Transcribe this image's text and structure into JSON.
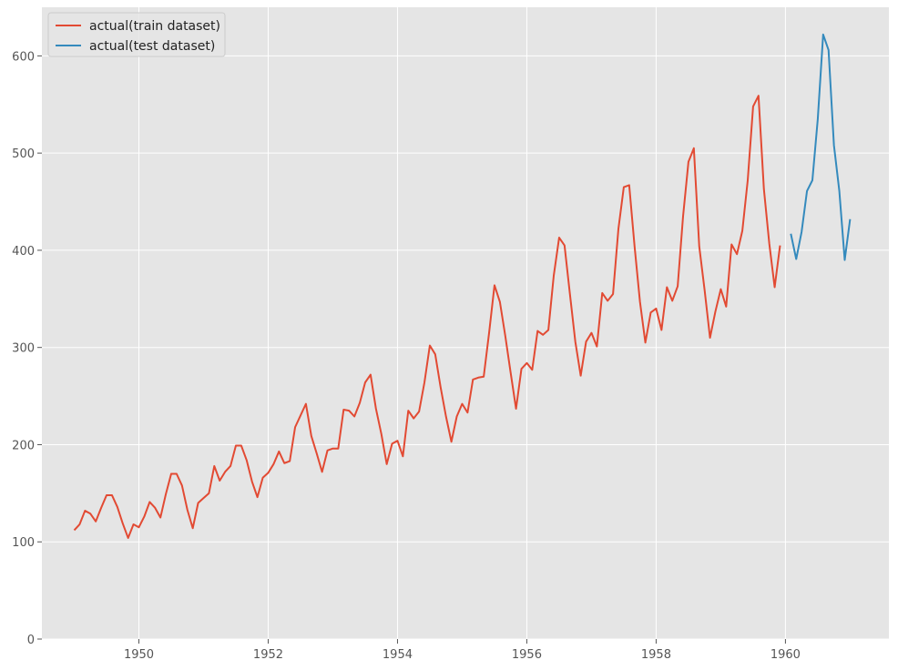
{
  "chart_data": {
    "type": "line",
    "title": "",
    "xlabel": "",
    "ylabel": "",
    "style": "ggplot",
    "background": "#e5e5e5",
    "grid": true,
    "grid_color": "#ffffff",
    "legend_position": "upper-left",
    "xlim": [
      1948.5,
      1961.6
    ],
    "ylim": [
      0,
      650
    ],
    "x_ticks": [
      1950,
      1952,
      1954,
      1956,
      1958,
      1960
    ],
    "x_tick_labels": [
      "1950",
      "1952",
      "1954",
      "1956",
      "1958",
      "1960"
    ],
    "y_ticks": [
      0,
      100,
      200,
      300,
      400,
      500,
      600
    ],
    "y_tick_labels": [
      "0",
      "100",
      "200",
      "300",
      "400",
      "500",
      "600"
    ],
    "x_start": 1949.0,
    "x_step": 0.08333333,
    "series": [
      {
        "name": "actual(train dataset)",
        "color": "#E24A33",
        "x_start_month": "1949-01",
        "values": [
          112,
          118,
          132,
          129,
          121,
          135,
          148,
          148,
          136,
          119,
          104,
          118,
          115,
          126,
          141,
          135,
          125,
          149,
          170,
          170,
          158,
          133,
          114,
          140,
          145,
          150,
          178,
          163,
          172,
          178,
          199,
          199,
          184,
          162,
          146,
          166,
          171,
          180,
          193,
          181,
          183,
          218,
          230,
          242,
          209,
          191,
          172,
          194,
          196,
          196,
          236,
          235,
          229,
          243,
          264,
          272,
          237,
          211,
          180,
          201,
          204,
          188,
          235,
          227,
          234,
          264,
          302,
          293,
          259,
          229,
          203,
          229,
          242,
          233,
          267,
          269,
          270,
          315,
          364,
          347,
          312,
          274,
          237,
          278,
          284,
          277,
          317,
          313,
          318,
          374,
          413,
          405,
          355,
          306,
          271,
          306,
          315,
          301,
          356,
          348,
          355,
          422,
          465,
          467,
          404,
          347,
          305,
          336,
          340,
          318,
          362,
          348,
          363,
          435,
          491,
          505,
          404,
          359,
          310,
          337,
          360,
          342,
          406,
          396,
          420,
          472,
          548,
          559,
          463,
          407,
          362,
          405
        ]
      },
      {
        "name": "actual(test dataset)",
        "color": "#348ABD",
        "x_start_month": "1960-02",
        "values": [
          417,
          391,
          419,
          461,
          472,
          535,
          622,
          606,
          508,
          461,
          390,
          432
        ]
      }
    ]
  }
}
